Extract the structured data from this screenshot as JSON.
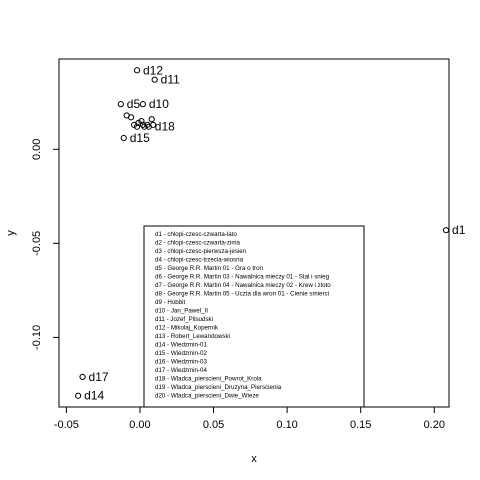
{
  "chart_data": {
    "type": "scatter",
    "xlabel": "x",
    "ylabel": "y",
    "xlim": [
      -0.055,
      0.21
    ],
    "ylim": [
      -0.137,
      0.048
    ],
    "xticks": [
      -0.05,
      0.0,
      0.05,
      0.1,
      0.15,
      0.2
    ],
    "xtick_labels": [
      "-0.05",
      "0.00",
      "0.05",
      "0.10",
      "0.15",
      "0.20"
    ],
    "yticks": [
      -0.1,
      -0.05,
      0.0
    ],
    "ytick_labels": [
      "-0.10",
      "-0.05",
      "0.00"
    ],
    "points": [
      {
        "label": "d1",
        "x": 0.208,
        "y": -0.043
      },
      {
        "label": "d2",
        "x": -0.004,
        "y": 0.013
      },
      {
        "label": "d3",
        "x": -0.001,
        "y": 0.014
      },
      {
        "label": "d4",
        "x": 0.002,
        "y": 0.013
      },
      {
        "label": "d5",
        "x": -0.013,
        "y": 0.024
      },
      {
        "label": "d6",
        "x": 0.003,
        "y": 0.012
      },
      {
        "label": "d7",
        "x": 0.001,
        "y": 0.015
      },
      {
        "label": "d8",
        "x": 0.005,
        "y": 0.013
      },
      {
        "label": "d9",
        "x": -0.002,
        "y": 0.012
      },
      {
        "label": "d10",
        "x": 0.002,
        "y": 0.024
      },
      {
        "label": "d11",
        "x": 0.01,
        "y": 0.037
      },
      {
        "label": "d12",
        "x": -0.002,
        "y": 0.042
      },
      {
        "label": "d13",
        "x": 0.008,
        "y": 0.016
      },
      {
        "label": "d14",
        "x": -0.042,
        "y": -0.131
      },
      {
        "label": "d15",
        "x": -0.011,
        "y": 0.006
      },
      {
        "label": "d16",
        "x": -0.009,
        "y": 0.018
      },
      {
        "label": "d17",
        "x": -0.039,
        "y": -0.121
      },
      {
        "label": "d18",
        "x": 0.006,
        "y": 0.012
      },
      {
        "label": "d19",
        "x": -0.006,
        "y": 0.017
      },
      {
        "label": "d20",
        "x": 0.009,
        "y": 0.013
      }
    ],
    "point_labels_shown": [
      {
        "text": "d1",
        "ref": "d1"
      },
      {
        "text": "d5",
        "ref": "d5"
      },
      {
        "text": "d10",
        "ref": "d10"
      },
      {
        "text": "d11",
        "ref": "d11"
      },
      {
        "text": "d12",
        "ref": "d12"
      },
      {
        "text": "d14",
        "ref": "d14"
      },
      {
        "text": "d15",
        "ref": "d15"
      },
      {
        "text": "d17",
        "ref": "d17"
      },
      {
        "text": "d18",
        "ref": "d18"
      }
    ],
    "legend": {
      "placement": "bottom-center",
      "entries": [
        "d1 - chlopi-czesc-czwarta-lato",
        "d2 - chlopi-czesc-czwarta-zima",
        "d3 - chlopi-czesc-pierwsza-jesien",
        "d4 - chlopi-czesc-trzecia-wiosna",
        "d5 - George R.R. Martin 01 - Gra o tron",
        "d6 - George R.R. Martin 03 - Nawalnica mieczy 01 - Stal i snieg",
        "d7 - George R.R. Martin 04 - Nawalnica mieczy 02 - Krew i zloto",
        "d8 - George R.R. Martin 05 - Uczta dla wron 01 - Cienie smierci",
        "d9 - Hobbit",
        "d10 - Jan_Pawel_II",
        "d11 - Jozef_Pilsudski",
        "d12 - Mikolaj_Kopernik",
        "d13 - Robert_Lewandowski",
        "d14 - Wiedzmin-01",
        "d15 - Wiedzmin-02",
        "d16 - Wiedzmin-03",
        "d17 - Wiedzmin-04",
        "d18 - Wladca_pierscieni_Powrot_Krola",
        "d19 - Wladca_pierscieni_Druzyna_Pierscienia",
        "d20 - Wladca_pierscieni_Dwie_Wieze"
      ]
    }
  }
}
